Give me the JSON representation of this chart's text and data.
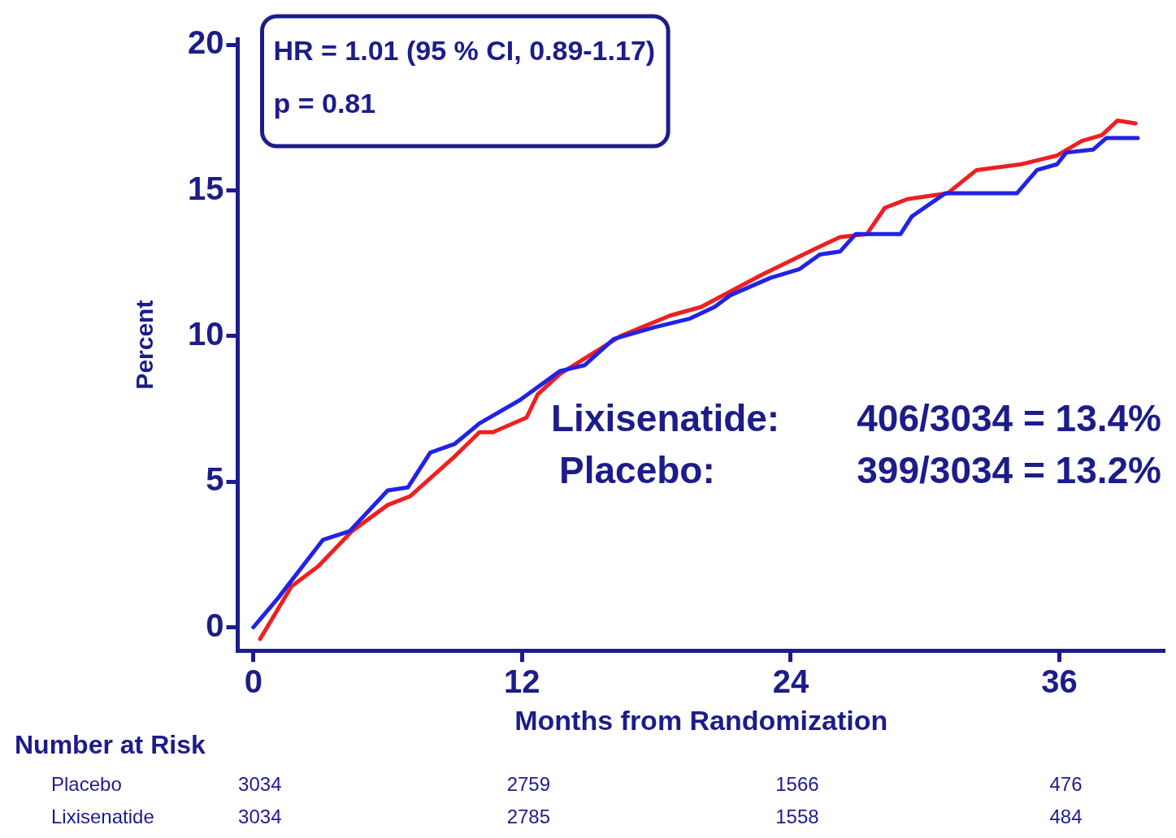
{
  "chart_data": {
    "type": "line",
    "xlabel": "Months from Randomization",
    "ylabel": "Percent",
    "xlim": [
      -0.7,
      40.7
    ],
    "xticks": [
      0,
      12,
      24,
      36
    ],
    "ylim": [
      -0.8,
      20.2
    ],
    "yticks": [
      0,
      5,
      10,
      15,
      20
    ],
    "grid": false,
    "legend": false,
    "marker": "none",
    "line_style": "solid",
    "series": [
      {
        "color": "#2222e6",
        "x": [
          0,
          1.1,
          3.1,
          4.3,
          6.0,
          6.9,
          7.9,
          9.0,
          10.1,
          11.9,
          13.7,
          14.8,
          16.1,
          17.9,
          19.5,
          20.6,
          21.3,
          23.1,
          24.4,
          25.3,
          26.2,
          26.9,
          28.9,
          29.4,
          30.9,
          34.1,
          35.0,
          35.9,
          36.3,
          37.5,
          38.1,
          39.5
        ],
        "values": [
          0,
          1.0,
          3.0,
          3.3,
          4.7,
          4.8,
          6.0,
          6.3,
          7.0,
          7.8,
          8.8,
          9.0,
          9.9,
          10.3,
          10.6,
          11.0,
          11.4,
          12.0,
          12.3,
          12.8,
          12.9,
          13.5,
          13.5,
          14.1,
          14.9,
          14.9,
          15.7,
          15.9,
          16.3,
          16.4,
          16.8,
          16.8
        ]
      },
      {
        "color": "#ee2020",
        "x": [
          0.3,
          1.7,
          2.9,
          4.4,
          6.0,
          7.0,
          8.9,
          10.1,
          10.7,
          12.2,
          12.7,
          13.7,
          16.4,
          18.6,
          20.0,
          22.7,
          25.1,
          26.2,
          27.4,
          28.2,
          29.2,
          31.0,
          32.3,
          34.3,
          35.9,
          37.0,
          37.9,
          38.6,
          39.4
        ],
        "values": [
          -0.4,
          1.4,
          2.1,
          3.3,
          4.2,
          4.5,
          5.8,
          6.7,
          6.7,
          7.2,
          8.0,
          8.7,
          10.0,
          10.7,
          11.0,
          12.1,
          13.0,
          13.4,
          13.5,
          14.4,
          14.7,
          14.9,
          15.7,
          15.9,
          16.2,
          16.7,
          16.9,
          17.4,
          17.3
        ]
      }
    ],
    "annotations": [
      "HR = 1.01 (95 % CI, 0.89-1.17)",
      "p = 0.81",
      "Lixisenatide:",
      "406/3034 = 13.4%",
      "Placebo:",
      "399/3034 = 13.2%",
      "Number at Risk",
      "Placebo",
      "3034",
      "2759",
      "1566",
      "476",
      "Lixisenatide",
      "3034",
      "2785",
      "1558",
      "484"
    ]
  }
}
